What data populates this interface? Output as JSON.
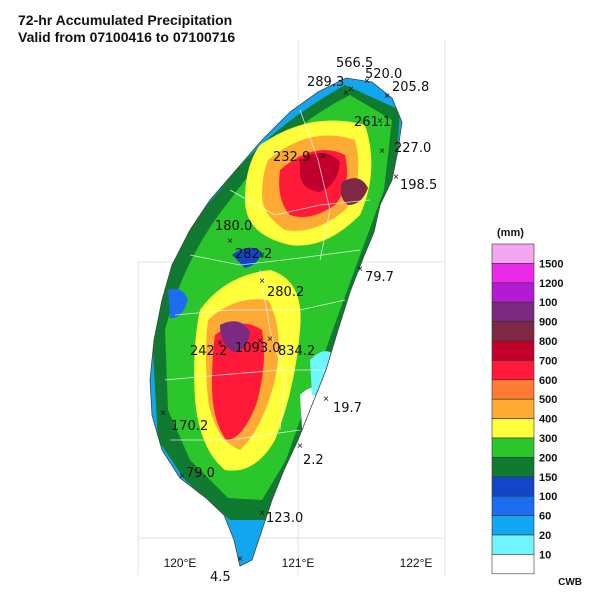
{
  "title": {
    "line1": "72-hr Accumulated Precipitation",
    "line2": "Valid from 07100416 to 07100716"
  },
  "credit": "CWB",
  "legend": {
    "unit": "(mm)",
    "levels": [
      {
        "label": "1500",
        "color": "#f5a6f0"
      },
      {
        "label": "1200",
        "color": "#ea2ae8"
      },
      {
        "label": "100",
        "color": "#b31ad1"
      },
      {
        "label": "900",
        "color": "#7a2a80"
      },
      {
        "label": "800",
        "color": "#7e2844"
      },
      {
        "label": "700",
        "color": "#c0002a"
      },
      {
        "label": "600",
        "color": "#ff1a3a"
      },
      {
        "label": "500",
        "color": "#ff7a35"
      },
      {
        "label": "400",
        "color": "#ffaa35"
      },
      {
        "label": "300",
        "color": "#ffff3c"
      },
      {
        "label": "200",
        "color": "#2bc62b"
      },
      {
        "label": "150",
        "color": "#0f7a30"
      },
      {
        "label": "100",
        "color": "#1246c8"
      },
      {
        "label": "60",
        "color": "#1b6ef0"
      },
      {
        "label": "20",
        "color": "#13a6f0"
      },
      {
        "label": "10",
        "color": "#6ff5ff"
      },
      {
        "label": "",
        "color": "#ffffff"
      }
    ]
  },
  "axis": {
    "longitudes": [
      "120°E",
      "121°E",
      "122°E"
    ]
  },
  "stations": [
    {
      "value": "566.5"
    },
    {
      "value": "520.0"
    },
    {
      "value": "289.3"
    },
    {
      "value": "205.8"
    },
    {
      "value": "261.1"
    },
    {
      "value": "227.0"
    },
    {
      "value": "232.9"
    },
    {
      "value": "198.5"
    },
    {
      "value": "180.0"
    },
    {
      "value": "282.2"
    },
    {
      "value": "79.7"
    },
    {
      "value": "280.2"
    },
    {
      "value": "242.2"
    },
    {
      "value": "1093.0"
    },
    {
      "value": "834.2"
    },
    {
      "value": "19.7"
    },
    {
      "value": "170.2"
    },
    {
      "value": "2.2"
    },
    {
      "value": "79.0"
    },
    {
      "value": "123.0"
    },
    {
      "value": "4.5"
    }
  ]
}
